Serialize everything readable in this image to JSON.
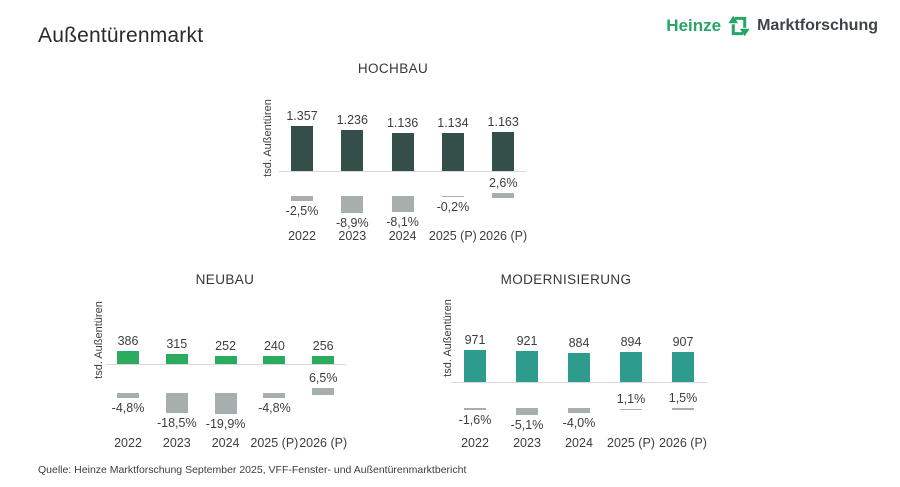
{
  "page": {
    "title": "Außentürenmarkt",
    "source": "Quelle: Heinze Marktforschung September 2025, VFF-Fenster- und Außentürenmarktbericht",
    "background": "#ffffff"
  },
  "logo": {
    "brand": "Heinze",
    "suffix": "Marktforschung",
    "icon": "recycle-arrows-icon",
    "brand_color": "#27a567",
    "suffix_color": "#3d4448"
  },
  "chart_data": [
    {
      "type": "bar",
      "title": "HOCHBAU",
      "ylabel": "tsd. Außentüren",
      "categories": [
        "2022",
        "2023",
        "2024",
        "2025 (P)",
        "2026 (P)"
      ],
      "values": [
        1357,
        1236,
        1136,
        1134,
        1163
      ],
      "value_labels": [
        "1.357",
        "1.236",
        "1.136",
        "1.134",
        "1.163"
      ],
      "change_pct": [
        -2.5,
        -8.9,
        -8.1,
        -0.2,
        2.6
      ],
      "change_labels": [
        "-2,5%",
        "-8,9%",
        "-8,1%",
        "-0,2%",
        "2,6%"
      ],
      "bar_color": "#344f49",
      "change_bar_color": "#a7aeae",
      "grid": false,
      "legend": false
    },
    {
      "type": "bar",
      "title": "NEUBAU",
      "ylabel": "tsd. Außentüren",
      "categories": [
        "2022",
        "2023",
        "2024",
        "2025 (P)",
        "2026 (P)"
      ],
      "values": [
        386,
        315,
        252,
        240,
        256
      ],
      "value_labels": [
        "386",
        "315",
        "252",
        "240",
        "256"
      ],
      "change_pct": [
        -4.8,
        -18.5,
        -19.9,
        -4.8,
        6.5
      ],
      "change_labels": [
        "-4,8%",
        "-18,5%",
        "-19,9%",
        "-4,8%",
        "6,5%"
      ],
      "bar_color": "#2cab5f",
      "change_bar_color": "#a7aeae",
      "grid": false,
      "legend": false
    },
    {
      "type": "bar",
      "title": "MODERNISIERUNG",
      "ylabel": "tsd. Außentüren",
      "categories": [
        "2022",
        "2023",
        "2024",
        "2025 (P)",
        "2026 (P)"
      ],
      "values": [
        971,
        921,
        884,
        894,
        907
      ],
      "value_labels": [
        "971",
        "921",
        "884",
        "894",
        "907"
      ],
      "change_pct": [
        -1.6,
        -5.1,
        -4.0,
        1.1,
        1.5
      ],
      "change_labels": [
        "-1,6%",
        "-5,1%",
        "-4,0%",
        "1,1%",
        "1,5%"
      ],
      "bar_color": "#2d9c8e",
      "change_bar_color": "#a7aeae",
      "grid": false,
      "legend": false
    }
  ]
}
